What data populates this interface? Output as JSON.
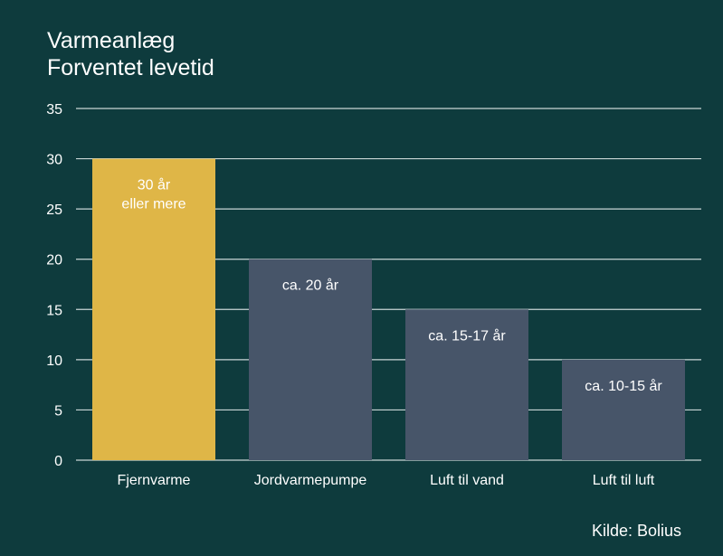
{
  "chart_data": {
    "type": "bar",
    "title": "Varmeanlæg",
    "subtitle": "Forventet levetid",
    "xlabel": "",
    "ylabel": "",
    "ylim": [
      0,
      35
    ],
    "yticks": [
      0,
      5,
      10,
      15,
      20,
      25,
      30,
      35
    ],
    "grid": true,
    "categories": [
      "Fjernvarme",
      "Jordvarmepumpe",
      "Luft til vand",
      "Luft til luft"
    ],
    "values": [
      30,
      20,
      15,
      10
    ],
    "data_labels": [
      [
        "30 år",
        "eller mere"
      ],
      [
        "ca. 20 år"
      ],
      [
        "ca. 15-17 år"
      ],
      [
        "ca. 10-15 år"
      ]
    ],
    "bar_colors": [
      "#dfb647",
      "#475569",
      "#475569",
      "#475569"
    ],
    "source": "Kilde: Bolius"
  },
  "colors": {
    "background": "#0e3b3d",
    "grid": "#c9d6d6",
    "text": "#ffffff"
  }
}
